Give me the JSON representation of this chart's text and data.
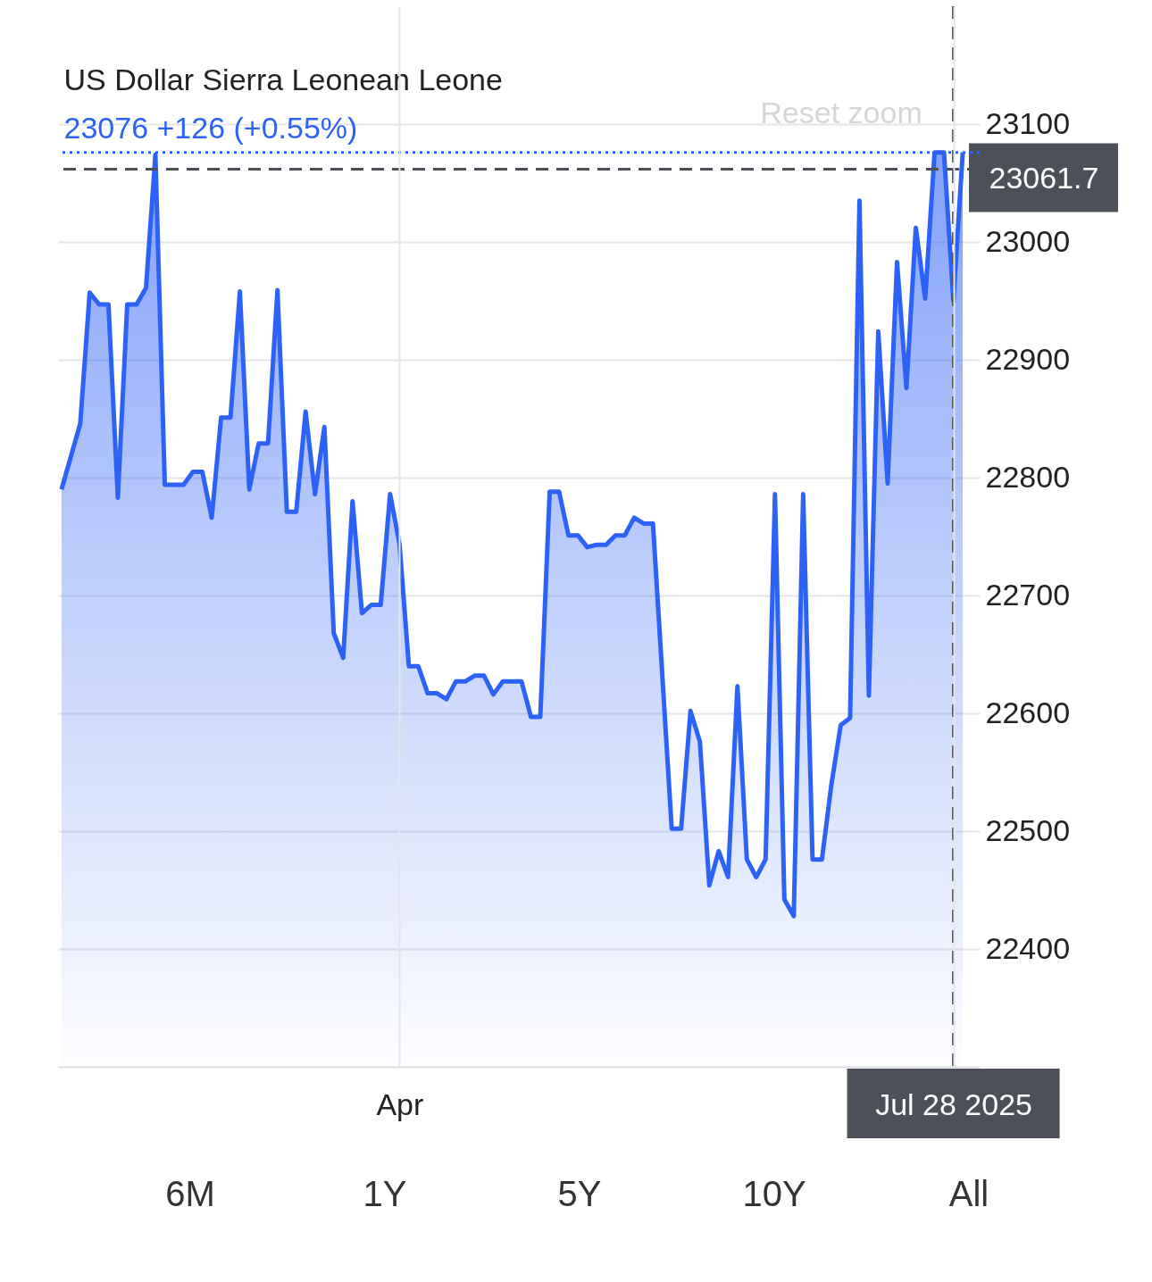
{
  "chart_data": {
    "type": "area",
    "title": "US Dollar Sierra Leonean Leone",
    "subtitle": "23076 +126 (+0.55%)",
    "categories": [
      null,
      null,
      null,
      null,
      null,
      null,
      null,
      null,
      null,
      null,
      null,
      null,
      null,
      null,
      null,
      null,
      null,
      null,
      null,
      null,
      null,
      null,
      null,
      null,
      null,
      null,
      null,
      null,
      null,
      null,
      null,
      null,
      null,
      null,
      null,
      null,
      "Apr",
      null,
      null,
      null,
      null,
      null,
      null,
      null,
      null,
      null,
      null,
      null,
      null,
      null,
      null,
      null,
      null,
      null,
      null,
      null,
      null,
      null,
      null,
      null,
      null,
      null,
      null,
      null,
      null,
      null,
      null,
      null,
      null,
      null,
      null,
      null,
      null,
      null,
      null,
      null,
      null,
      null,
      null,
      null,
      null,
      null,
      null,
      null,
      null,
      null,
      null,
      null,
      null,
      null,
      null,
      null,
      null,
      null,
      null,
      "Jul 28 2025",
      null
    ],
    "series": [
      {
        "color": "#2d62f6",
        "values": [
          22790,
          22818,
          22846,
          22957,
          22947,
          22947,
          22783,
          22947,
          22947,
          22961,
          23074,
          22794,
          22794,
          22794,
          22805,
          22805,
          22766,
          22851,
          22851,
          22958,
          22790,
          22829,
          22829,
          22959,
          22771,
          22771,
          22856,
          22786,
          22843,
          22668,
          22647,
          22780,
          22685,
          22692,
          22692,
          22786,
          22744,
          22640,
          22640,
          22617,
          22617,
          22612,
          22627,
          22627,
          22632,
          22632,
          22616,
          22627,
          22627,
          22627,
          22597,
          22597,
          22788,
          22788,
          22751,
          22751,
          22741,
          22743,
          22743,
          22751,
          22751,
          22766,
          22761,
          22761,
          22632,
          22502,
          22502,
          22602,
          22576,
          22454,
          22483,
          22461,
          22623,
          22476,
          22461,
          22476,
          22786,
          22442,
          22428,
          22786,
          22476,
          22476,
          22539,
          22590,
          22596,
          23035,
          22615,
          22924,
          22795,
          22983,
          22876,
          23012,
          22952,
          23076,
          23076,
          22950,
          23076
        ]
      }
    ],
    "ylim": [
      22300,
      23200
    ],
    "yticks": [
      22400,
      22500,
      22600,
      22700,
      22800,
      22900,
      23000,
      23100
    ],
    "grid": true,
    "ref_lines": [
      {
        "axis": "x",
        "value": "Jul 28 2025",
        "color": "#4b5059",
        "line_style": "dashed"
      },
      {
        "axis": "y",
        "value": 23061.7,
        "label": "23061.7",
        "color": "#4b5059",
        "line_style": "dashed"
      },
      {
        "axis": "y",
        "value": 23076,
        "color": "#2d62f6",
        "line_style": "dotted"
      }
    ],
    "annotations": [
      "Reset zoom",
      "6M",
      "1Y",
      "5Y",
      "10Y",
      "All"
    ]
  }
}
